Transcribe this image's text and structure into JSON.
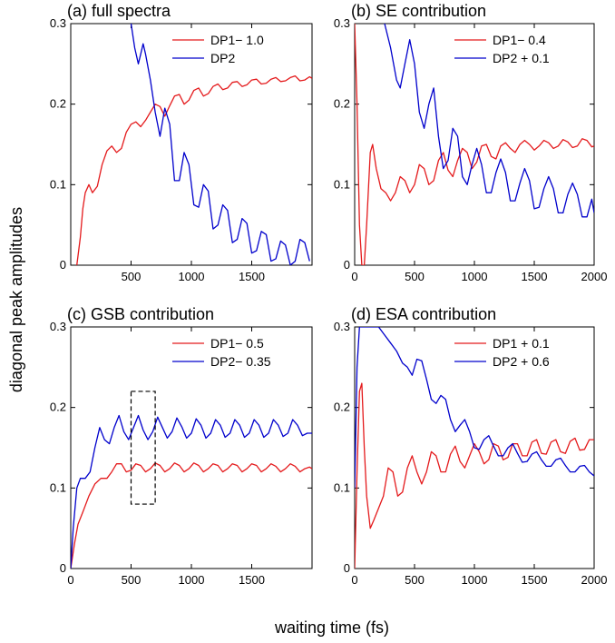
{
  "colors": {
    "red": "#e41a1c",
    "blue": "#0000cc"
  },
  "figure": {
    "ylabel": "diagonal peak amplitudes",
    "xlabel": "waiting time (fs)"
  },
  "chart_data": [
    {
      "type": "line",
      "title": "(a) full spectra",
      "xlim": [
        0,
        2000
      ],
      "ylim": [
        0,
        0.3
      ],
      "xticks": [
        500,
        1000,
        1500
      ],
      "xtick_labels": [
        "500",
        "1000",
        "1500"
      ],
      "yticks": [
        0,
        0.1,
        0.2,
        0.3
      ],
      "ytick_labels": [
        "0",
        "0.1",
        "0.2",
        "0.3"
      ],
      "legend": "top-right",
      "series": [
        {
          "name": "DP1− 1.0",
          "color": "#e41a1c",
          "x": [
            50,
            80,
            100,
            120,
            150,
            180,
            220,
            260,
            300,
            340,
            380,
            420,
            460,
            500,
            540,
            580,
            620,
            660,
            700,
            740,
            780,
            820,
            860,
            900,
            940,
            980,
            1020,
            1060,
            1100,
            1140,
            1180,
            1220,
            1260,
            1300,
            1340,
            1380,
            1420,
            1460,
            1500,
            1540,
            1580,
            1620,
            1660,
            1700,
            1740,
            1780,
            1820,
            1860,
            1900,
            1940,
            1980,
            2000
          ],
          "y": [
            0.0,
            0.035,
            0.07,
            0.09,
            0.1,
            0.09,
            0.098,
            0.125,
            0.142,
            0.148,
            0.14,
            0.145,
            0.165,
            0.175,
            0.178,
            0.172,
            0.18,
            0.19,
            0.2,
            0.197,
            0.185,
            0.198,
            0.21,
            0.212,
            0.2,
            0.205,
            0.217,
            0.22,
            0.21,
            0.213,
            0.222,
            0.225,
            0.218,
            0.22,
            0.227,
            0.228,
            0.222,
            0.224,
            0.23,
            0.231,
            0.225,
            0.226,
            0.231,
            0.233,
            0.228,
            0.229,
            0.233,
            0.235,
            0.229,
            0.23,
            0.234,
            0.232
          ]
        },
        {
          "name": "DP2",
          "color": "#0000cc",
          "x": [
            500,
            530,
            560,
            580,
            600,
            620,
            660,
            700,
            740,
            780,
            820,
            860,
            900,
            940,
            980,
            1020,
            1060,
            1100,
            1140,
            1180,
            1220,
            1260,
            1300,
            1340,
            1380,
            1420,
            1460,
            1500,
            1540,
            1580,
            1620,
            1660,
            1700,
            1740,
            1780,
            1820,
            1860,
            1900,
            1940,
            1980
          ],
          "y": [
            0.3,
            0.27,
            0.25,
            0.262,
            0.275,
            0.262,
            0.23,
            0.19,
            0.16,
            0.195,
            0.175,
            0.105,
            0.105,
            0.14,
            0.125,
            0.075,
            0.072,
            0.1,
            0.092,
            0.045,
            0.05,
            0.075,
            0.068,
            0.028,
            0.032,
            0.058,
            0.052,
            0.015,
            0.018,
            0.042,
            0.038,
            0.005,
            0.008,
            0.03,
            0.025,
            0.0,
            0.005,
            0.032,
            0.028,
            0.005
          ]
        }
      ]
    },
    {
      "type": "line",
      "title": "(b) SE contribution",
      "xlim": [
        0,
        2000
      ],
      "ylim": [
        0,
        0.3
      ],
      "xticks": [
        0,
        500,
        1000,
        1500,
        2000
      ],
      "xtick_labels": [
        "0",
        "500",
        "1000",
        "1500",
        "2000"
      ],
      "yticks": [
        0,
        0.1,
        0.2,
        0.3
      ],
      "ytick_labels": [
        "0",
        "0.1",
        "0.2",
        "0.3"
      ],
      "legend": "top-right",
      "series": [
        {
          "name": "DP1− 0.4",
          "color": "#e41a1c",
          "x": [
            0,
            20,
            40,
            60,
            80,
            100,
            130,
            150,
            180,
            220,
            260,
            300,
            340,
            380,
            420,
            460,
            500,
            540,
            580,
            620,
            660,
            700,
            740,
            780,
            820,
            860,
            900,
            940,
            980,
            1020,
            1060,
            1100,
            1140,
            1180,
            1220,
            1260,
            1300,
            1340,
            1380,
            1420,
            1460,
            1500,
            1540,
            1580,
            1620,
            1660,
            1700,
            1740,
            1780,
            1820,
            1860,
            1900,
            1940,
            1980,
            2000
          ],
          "y": [
            0.3,
            0.2,
            0.05,
            0.0,
            0.0,
            0.05,
            0.14,
            0.15,
            0.12,
            0.095,
            0.09,
            0.08,
            0.09,
            0.11,
            0.105,
            0.09,
            0.1,
            0.125,
            0.12,
            0.1,
            0.105,
            0.13,
            0.14,
            0.118,
            0.11,
            0.13,
            0.145,
            0.14,
            0.12,
            0.128,
            0.148,
            0.15,
            0.135,
            0.132,
            0.148,
            0.152,
            0.145,
            0.14,
            0.15,
            0.155,
            0.15,
            0.143,
            0.148,
            0.155,
            0.152,
            0.145,
            0.148,
            0.156,
            0.153,
            0.146,
            0.148,
            0.157,
            0.155,
            0.147,
            0.148
          ]
        },
        {
          "name": "DP2 + 0.1",
          "color": "#0000cc",
          "x": [
            250,
            300,
            350,
            380,
            420,
            460,
            500,
            540,
            580,
            620,
            660,
            700,
            740,
            780,
            820,
            860,
            900,
            940,
            980,
            1020,
            1060,
            1100,
            1140,
            1180,
            1220,
            1260,
            1300,
            1340,
            1380,
            1420,
            1460,
            1500,
            1540,
            1580,
            1620,
            1660,
            1700,
            1740,
            1780,
            1820,
            1860,
            1900,
            1940,
            1980,
            2000
          ],
          "y": [
            0.3,
            0.27,
            0.23,
            0.22,
            0.25,
            0.28,
            0.25,
            0.19,
            0.17,
            0.2,
            0.22,
            0.16,
            0.12,
            0.13,
            0.17,
            0.16,
            0.11,
            0.1,
            0.125,
            0.145,
            0.125,
            0.09,
            0.09,
            0.115,
            0.132,
            0.115,
            0.08,
            0.08,
            0.102,
            0.12,
            0.105,
            0.07,
            0.072,
            0.095,
            0.11,
            0.095,
            0.065,
            0.065,
            0.088,
            0.102,
            0.088,
            0.06,
            0.06,
            0.082,
            0.065
          ]
        }
      ]
    },
    {
      "type": "line",
      "title": "(c) GSB contribution",
      "xlim": [
        0,
        2000
      ],
      "ylim": [
        0,
        0.3
      ],
      "xticks": [
        0,
        500,
        1000,
        1500
      ],
      "xtick_labels": [
        "0",
        "500",
        "1000",
        "1500"
      ],
      "yticks": [
        0,
        0.1,
        0.2,
        0.3
      ],
      "ytick_labels": [
        "0",
        "0.1",
        "0.2",
        "0.3"
      ],
      "legend": "top-right",
      "annotation": {
        "type": "dashed-box",
        "x": [
          500,
          700
        ],
        "y": [
          0.08,
          0.22
        ]
      },
      "series": [
        {
          "name": "DP1− 0.5",
          "color": "#e41a1c",
          "x": [
            0,
            30,
            60,
            100,
            150,
            200,
            250,
            300,
            340,
            380,
            420,
            460,
            500,
            540,
            580,
            620,
            660,
            700,
            740,
            780,
            820,
            860,
            900,
            940,
            980,
            1020,
            1060,
            1100,
            1140,
            1180,
            1220,
            1260,
            1300,
            1340,
            1380,
            1420,
            1460,
            1500,
            1540,
            1580,
            1620,
            1660,
            1700,
            1740,
            1780,
            1820,
            1860,
            1900,
            1940,
            1980,
            2000
          ],
          "y": [
            0.0,
            0.03,
            0.055,
            0.07,
            0.09,
            0.105,
            0.112,
            0.112,
            0.12,
            0.13,
            0.13,
            0.12,
            0.122,
            0.13,
            0.128,
            0.12,
            0.124,
            0.131,
            0.128,
            0.12,
            0.124,
            0.131,
            0.128,
            0.12,
            0.124,
            0.131,
            0.128,
            0.12,
            0.124,
            0.13,
            0.128,
            0.12,
            0.124,
            0.13,
            0.128,
            0.12,
            0.124,
            0.13,
            0.128,
            0.12,
            0.124,
            0.13,
            0.127,
            0.12,
            0.124,
            0.13,
            0.127,
            0.12,
            0.124,
            0.126,
            0.124
          ]
        },
        {
          "name": "DP2− 0.35",
          "color": "#0000cc",
          "x": [
            0,
            20,
            50,
            80,
            120,
            160,
            200,
            240,
            280,
            320,
            360,
            400,
            440,
            480,
            520,
            560,
            600,
            640,
            680,
            720,
            760,
            800,
            840,
            880,
            920,
            960,
            1000,
            1040,
            1080,
            1120,
            1160,
            1200,
            1240,
            1280,
            1320,
            1360,
            1400,
            1440,
            1480,
            1520,
            1560,
            1600,
            1640,
            1680,
            1720,
            1760,
            1800,
            1840,
            1880,
            1920,
            1960,
            2000
          ],
          "y": [
            0.0,
            0.05,
            0.1,
            0.112,
            0.112,
            0.12,
            0.15,
            0.175,
            0.16,
            0.155,
            0.175,
            0.19,
            0.17,
            0.16,
            0.175,
            0.19,
            0.172,
            0.16,
            0.17,
            0.188,
            0.175,
            0.162,
            0.17,
            0.187,
            0.176,
            0.162,
            0.168,
            0.186,
            0.178,
            0.162,
            0.168,
            0.185,
            0.178,
            0.163,
            0.168,
            0.185,
            0.178,
            0.163,
            0.168,
            0.185,
            0.178,
            0.163,
            0.168,
            0.185,
            0.178,
            0.164,
            0.168,
            0.185,
            0.178,
            0.165,
            0.168,
            0.168
          ]
        }
      ]
    },
    {
      "type": "line",
      "title": "(d) ESA contribution",
      "xlim": [
        0,
        2000
      ],
      "ylim": [
        0,
        0.3
      ],
      "xticks": [
        0,
        500,
        1000,
        1500,
        2000
      ],
      "xtick_labels": [
        "0",
        "500",
        "1000",
        "1500",
        "2000"
      ],
      "yticks": [
        0,
        0.1,
        0.2,
        0.3
      ],
      "ytick_labels": [
        "0",
        "0.1",
        "0.2",
        "0.3"
      ],
      "legend": "top-right",
      "series": [
        {
          "name": "DP1 + 0.1",
          "color": "#e41a1c",
          "x": [
            0,
            20,
            40,
            60,
            80,
            100,
            130,
            160,
            200,
            240,
            280,
            320,
            360,
            400,
            440,
            480,
            520,
            560,
            600,
            640,
            680,
            720,
            760,
            800,
            840,
            880,
            920,
            960,
            1000,
            1040,
            1080,
            1120,
            1160,
            1200,
            1240,
            1280,
            1320,
            1360,
            1400,
            1440,
            1480,
            1520,
            1560,
            1600,
            1640,
            1680,
            1720,
            1760,
            1800,
            1840,
            1880,
            1920,
            1960,
            2000
          ],
          "y": [
            0.0,
            0.12,
            0.22,
            0.23,
            0.15,
            0.09,
            0.05,
            0.06,
            0.075,
            0.09,
            0.125,
            0.12,
            0.09,
            0.095,
            0.125,
            0.14,
            0.12,
            0.105,
            0.12,
            0.145,
            0.14,
            0.12,
            0.12,
            0.142,
            0.152,
            0.133,
            0.125,
            0.14,
            0.155,
            0.145,
            0.13,
            0.135,
            0.155,
            0.152,
            0.135,
            0.138,
            0.155,
            0.155,
            0.14,
            0.14,
            0.157,
            0.16,
            0.143,
            0.142,
            0.157,
            0.16,
            0.145,
            0.143,
            0.158,
            0.162,
            0.147,
            0.148,
            0.16,
            0.16
          ]
        },
        {
          "name": "DP2 + 0.6",
          "color": "#0000cc",
          "x": [
            0,
            20,
            40,
            60,
            100,
            150,
            200,
            250,
            300,
            350,
            400,
            440,
            480,
            520,
            560,
            600,
            640,
            680,
            720,
            760,
            800,
            840,
            880,
            920,
            960,
            1000,
            1040,
            1080,
            1120,
            1160,
            1200,
            1240,
            1280,
            1320,
            1360,
            1400,
            1440,
            1480,
            1520,
            1560,
            1600,
            1640,
            1680,
            1720,
            1760,
            1800,
            1840,
            1880,
            1920,
            1960,
            2000
          ],
          "y": [
            0.1,
            0.25,
            0.3,
            0.3,
            0.3,
            0.3,
            0.3,
            0.29,
            0.28,
            0.27,
            0.255,
            0.25,
            0.24,
            0.26,
            0.258,
            0.235,
            0.21,
            0.205,
            0.215,
            0.21,
            0.185,
            0.17,
            0.178,
            0.185,
            0.17,
            0.15,
            0.148,
            0.16,
            0.165,
            0.152,
            0.14,
            0.14,
            0.15,
            0.155,
            0.143,
            0.132,
            0.133,
            0.142,
            0.145,
            0.135,
            0.127,
            0.127,
            0.135,
            0.137,
            0.128,
            0.12,
            0.12,
            0.127,
            0.128,
            0.12,
            0.115
          ]
        }
      ]
    }
  ]
}
